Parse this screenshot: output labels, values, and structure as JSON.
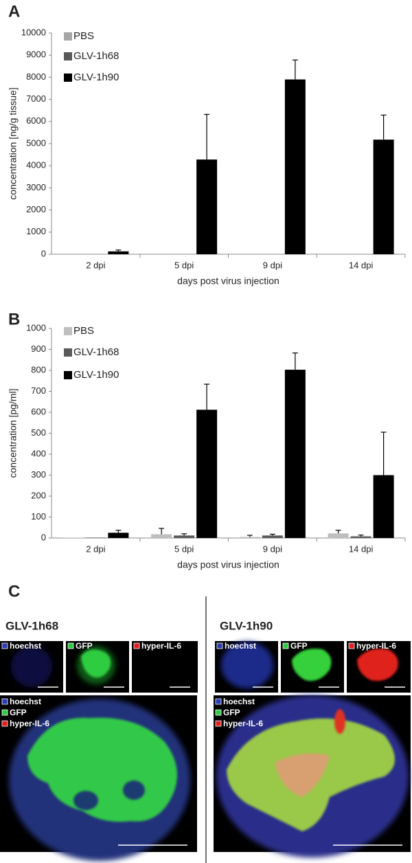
{
  "chart_data": [
    {
      "type": "bar",
      "panel": "A",
      "ylabel": "concentration [ng/g tissue]",
      "xlabel": "days post virus injection",
      "categories": [
        "2 dpi",
        "5 dpi",
        "9 dpi",
        "14 dpi"
      ],
      "series": [
        {
          "name": "PBS",
          "color": "#a6a6a6",
          "values": [
            0,
            0,
            0,
            0
          ],
          "errors": [
            null,
            null,
            null,
            null
          ]
        },
        {
          "name": "GLV-1h68",
          "color": "#595959",
          "values": [
            0,
            0,
            0,
            0
          ],
          "errors": [
            null,
            null,
            null,
            null
          ]
        },
        {
          "name": "GLV-1h90",
          "color": "#000000",
          "values": [
            130,
            4280,
            7900,
            5180
          ],
          "errors": [
            60,
            2040,
            880,
            1110
          ]
        }
      ],
      "ylim": [
        0,
        10000
      ],
      "yticks": [
        0,
        1000,
        2000,
        3000,
        4000,
        5000,
        6000,
        7000,
        8000,
        9000,
        10000
      ],
      "legend": "upper left"
    },
    {
      "type": "bar",
      "panel": "B",
      "ylabel": "concentration [pg/ml]",
      "xlabel": "days post virus injection",
      "categories": [
        "2 dpi",
        "5 dpi",
        "9 dpi",
        "14 dpi"
      ],
      "series": [
        {
          "name": "PBS",
          "color": "#bfbfbf",
          "values": [
            2,
            18,
            5,
            22
          ],
          "errors": [
            null,
            28,
            8,
            15
          ]
        },
        {
          "name": "GLV-1h68",
          "color": "#595959",
          "values": [
            2,
            12,
            12,
            8
          ],
          "errors": [
            null,
            8,
            6,
            6
          ]
        },
        {
          "name": "GLV-1h90",
          "color": "#000000",
          "values": [
            25,
            612,
            803,
            300
          ],
          "errors": [
            12,
            122,
            80,
            205
          ]
        }
      ],
      "ylim": [
        0,
        1000
      ],
      "yticks": [
        0,
        100,
        200,
        300,
        400,
        500,
        600,
        700,
        800,
        900,
        1000
      ],
      "legend": "upper left"
    }
  ],
  "panel_c": {
    "label": "C",
    "groups": [
      {
        "title": "GLV-1h68",
        "channels": [
          "hoechst",
          "GFP",
          "hyper-IL-6"
        ]
      },
      {
        "title": "GLV-1h90",
        "channels": [
          "hoechst",
          "GFP",
          "hyper-IL-6"
        ]
      }
    ]
  }
}
